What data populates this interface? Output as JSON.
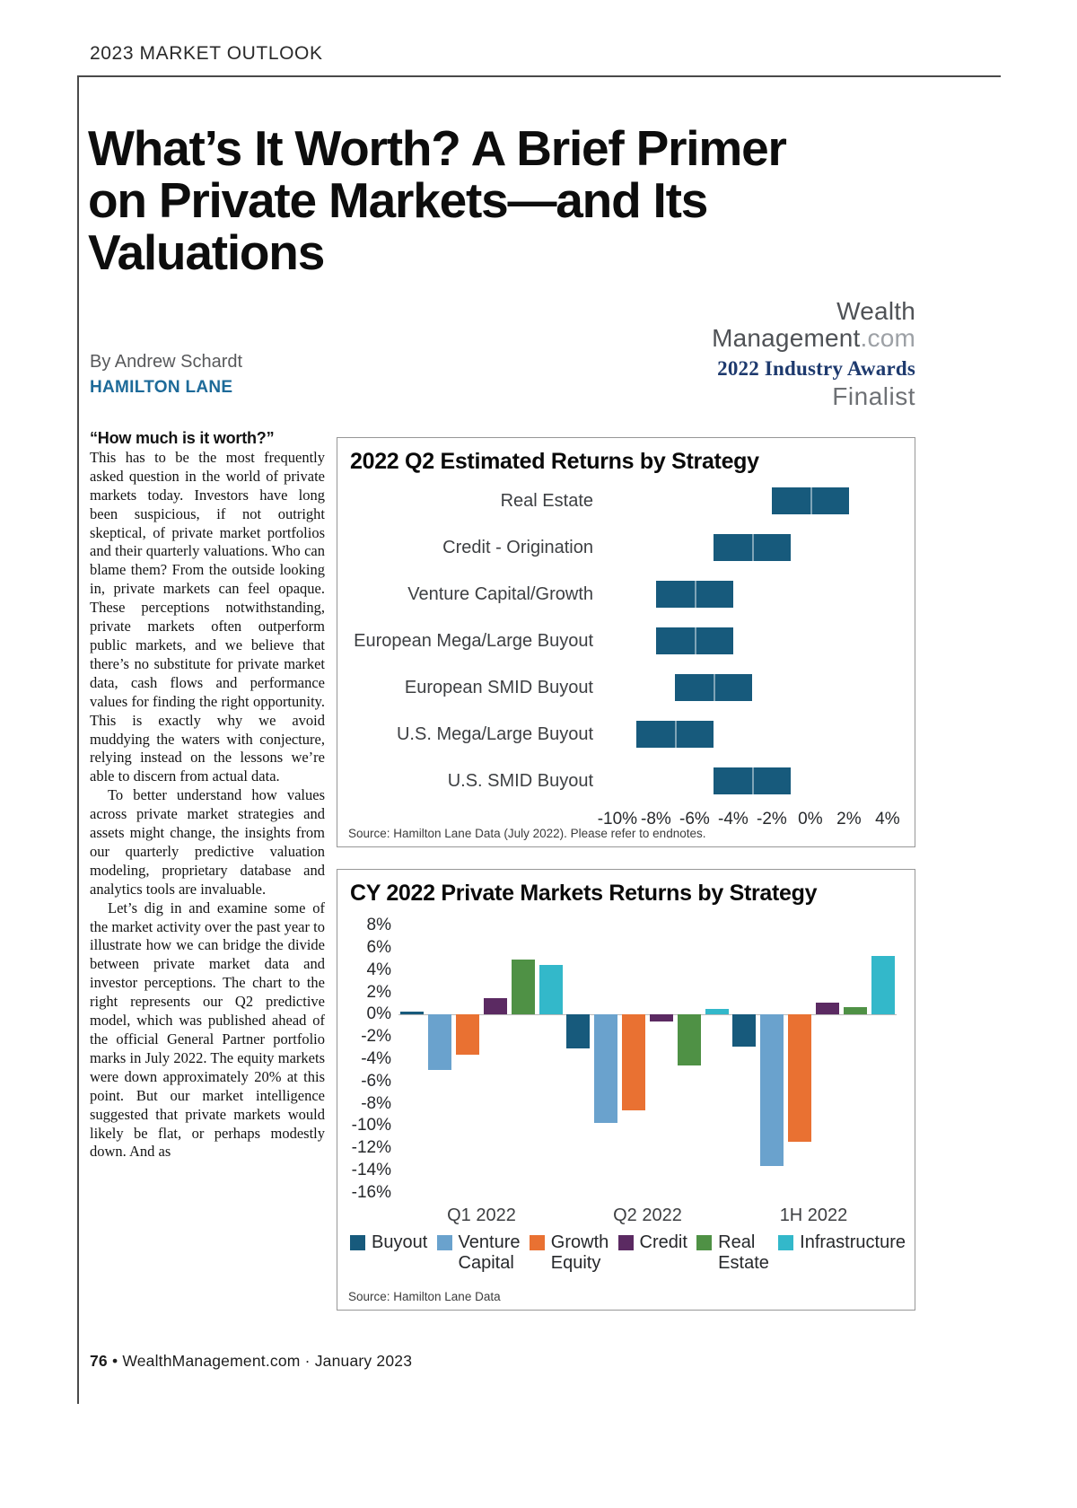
{
  "page": {
    "kicker": "2023 MARKET OUTLOOK",
    "title_lines": [
      "What’s It Worth? A Brief Primer",
      "on Private Markets—and Its",
      "Valuations"
    ],
    "byline": "By Andrew Schardt",
    "organization": "HAMILTON LANE",
    "footer": {
      "page_number": "76",
      "text": "• WealthManagement.com · January 2023"
    }
  },
  "award": {
    "brand_line1": "Wealth",
    "brand_line2": "Management",
    "brand_suffix": ".com",
    "award_line": "2022 Industry Awards",
    "status": "Finalist"
  },
  "article": {
    "p1_lead": "“How much is it worth?”",
    "p1_text": "This has to be the most frequently asked question in the world of private markets today. Investors have long been suspicious, if not outright skeptical, of private market portfolios and their quarterly valuations. Who can blame them? From the outside looking in, private markets can feel opaque. These perceptions notwithstanding, private markets often outperform public markets, and we believe that there’s no substitute for private market data, cash flows and performance values for finding the right opportunity. This is exactly why we avoid muddying the waters with conjecture, relying instead on the lessons we’re able to discern from actual data.",
    "p2": "To better understand how values across private market strategies and assets might change, the insights from our quarterly predictive valuation modeling, proprietary database and analytics tools are invaluable.",
    "p3": "Let’s dig in and examine some of the market activity over the past year to illustrate how we can bridge the divide between private market data and investor perceptions. The chart to the right represents our Q2 predictive model, which was published ahead of the official General Partner portfolio marks in July 2022. The equity markets were down approximately 20% at this point. But our market intelligence suggested that private markets would likely be flat, or perhaps modestly down. And as"
  },
  "chart_data": [
    {
      "type": "bar",
      "orientation": "horizontal",
      "title": "2022 Q2 Estimated Returns by Strategy",
      "categories": [
        "Real Estate",
        "Credit - Origination",
        "Venture Capital/Growth",
        "European Mega/Large Buyout",
        "European SMID Buyout",
        "U.S. Mega/Large Buyout",
        "U.S. SMID Buyout"
      ],
      "ranges_pct": [
        [
          -2,
          2
        ],
        [
          -5,
          -1
        ],
        [
          -8,
          -4
        ],
        [
          -8,
          -4
        ],
        [
          -7,
          -3
        ],
        [
          -9,
          -5
        ],
        [
          -5,
          -1
        ]
      ],
      "xticks": [
        -10,
        -8,
        -6,
        -4,
        -2,
        0,
        2,
        4
      ],
      "xtick_labels": [
        "-10%",
        "-8%",
        "-6%",
        "-4%",
        "-2%",
        "0%",
        "2%",
        "4%"
      ],
      "xlim": [
        -10.6,
        5.4
      ],
      "bar_color": "#175a7c",
      "grid": "off",
      "source": "Source: Hamilton Lane Data (July 2022). Please refer to endnotes."
    },
    {
      "type": "bar",
      "orientation": "vertical",
      "title": "CY 2022 Private Markets Returns by Strategy",
      "categories": [
        "Q1 2022",
        "Q2 2022",
        "1H 2022"
      ],
      "series": [
        {
          "name": "Buyout",
          "color": "#175a7c",
          "values": [
            0.3,
            -3.0,
            -2.9
          ]
        },
        {
          "name": "Venture Capital",
          "color": "#6aa2cd",
          "values": [
            -5.0,
            -9.7,
            -13.6
          ]
        },
        {
          "name": "Growth Equity",
          "color": "#e97132",
          "values": [
            -3.6,
            -8.6,
            -11.4
          ]
        },
        {
          "name": "Credit",
          "color": "#5b2a62",
          "values": [
            1.5,
            -0.6,
            1.1
          ]
        },
        {
          "name": "Real Estate",
          "color": "#4f9145",
          "values": [
            5.0,
            -4.6,
            0.7
          ]
        },
        {
          "name": "Infrastructure",
          "color": "#33b8ca",
          "values": [
            4.5,
            0.5,
            5.3
          ]
        }
      ],
      "legend_labels": [
        "Buyout",
        "Venture\nCapital",
        "Growth\nEquity",
        "Credit",
        "Real\nEstate",
        "Infrastructure"
      ],
      "yticks": [
        8,
        6,
        4,
        2,
        0,
        -2,
        -4,
        -6,
        -8,
        -10,
        -12,
        -14,
        -16
      ],
      "ytick_suffix": "%",
      "ylim": [
        -16.6,
        8.6
      ],
      "grid": "zero-line-only",
      "legend_position": "bottom",
      "source": "Source: Hamilton Lane Data"
    }
  ]
}
